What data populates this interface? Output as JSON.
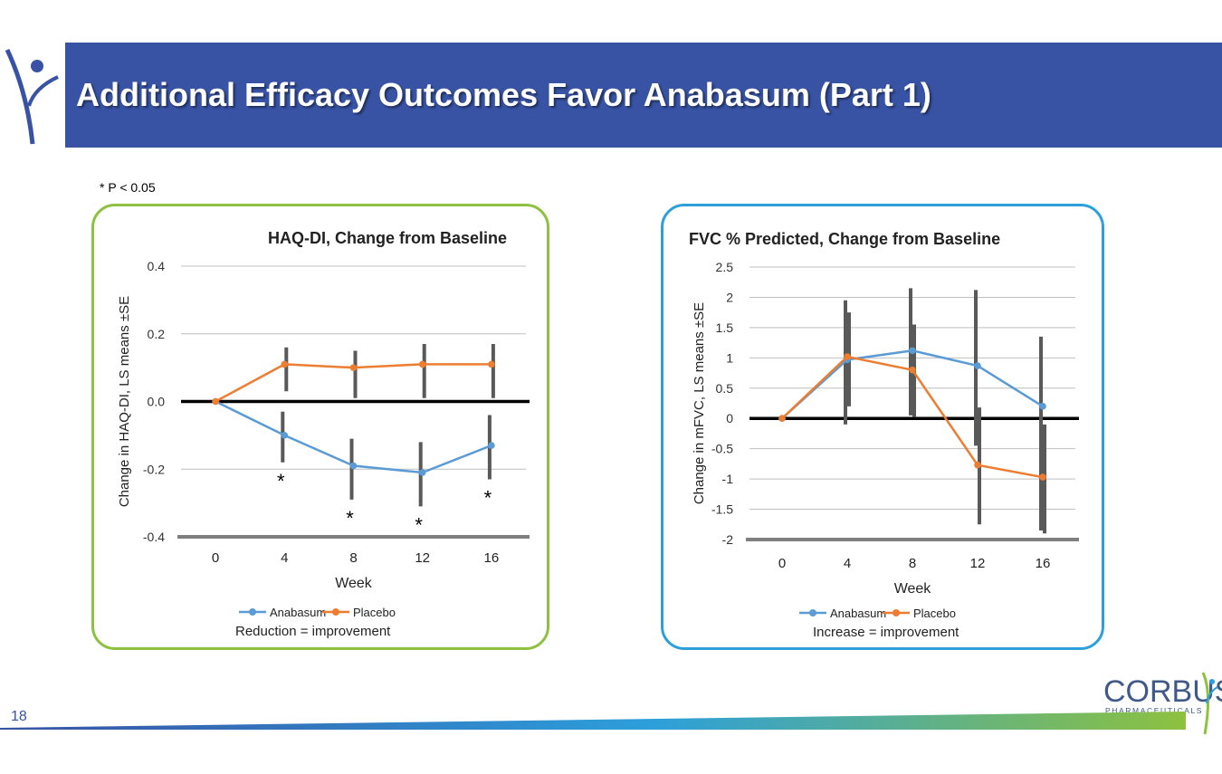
{
  "slide": {
    "title": "Additional Efficacy Outcomes Favor Anabasum (Part 1)",
    "note": "* P < 0.05",
    "page_number": "18",
    "logo": {
      "name": "CORBUS",
      "sub": "PHARMACEUTICALS"
    }
  },
  "colors": {
    "banner": "#3853a4",
    "anabasum": "#5b9bd5",
    "placebo": "#ed7d31",
    "left_border": "#8dc13f",
    "right_border": "#2d9fdb"
  },
  "chart_data": [
    {
      "type": "line",
      "title": "HAQ-DI, Change from Baseline",
      "xlabel": "Week",
      "ylabel": "Change in HAQ-DI, LS means ±SE",
      "x": [
        0,
        4,
        8,
        12,
        16
      ],
      "ylim": [
        -0.4,
        0.4
      ],
      "yticks": [
        -0.4,
        -0.2,
        0.0,
        0.2,
        0.4
      ],
      "ytick_labels": [
        "-0.4",
        "-0.2",
        "0.0",
        "0.2",
        "0.4"
      ],
      "series": [
        {
          "name": "Anabasum",
          "values": [
            0,
            -0.1,
            -0.19,
            -0.21,
            -0.13
          ],
          "err_low": [
            null,
            -0.18,
            -0.29,
            -0.31,
            -0.23
          ],
          "err_high": [
            null,
            -0.03,
            -0.11,
            -0.12,
            -0.04
          ]
        },
        {
          "name": "Placebo",
          "values": [
            0,
            0.11,
            0.1,
            0.11,
            0.11
          ],
          "err_low": [
            null,
            0.03,
            0.01,
            0.01,
            0.01
          ],
          "err_high": [
            null,
            0.16,
            0.15,
            0.17,
            0.17
          ]
        }
      ],
      "significance": [
        {
          "x": 4,
          "label": "*"
        },
        {
          "x": 8,
          "label": "*"
        },
        {
          "x": 12,
          "label": "*"
        },
        {
          "x": 16,
          "label": "*"
        }
      ],
      "caption": "Reduction = improvement",
      "legend": "bottom"
    },
    {
      "type": "line",
      "title": "FVC % Predicted, Change from Baseline",
      "xlabel": "Week",
      "ylabel": "Change in mFVC, LS means ±SE",
      "x": [
        0,
        4,
        8,
        12,
        16
      ],
      "ylim": [
        -2,
        2.5
      ],
      "yticks": [
        -2,
        -1.5,
        -1,
        -0.5,
        0,
        0.5,
        1,
        1.5,
        2,
        2.5
      ],
      "ytick_labels": [
        "-2",
        "-1.5",
        "-1",
        "-0.5",
        "0",
        "0.5",
        "1",
        "1.5",
        "2",
        "2.5"
      ],
      "series": [
        {
          "name": "Anabasum",
          "values": [
            0,
            0.97,
            1.12,
            0.87,
            0.2
          ],
          "err_low": [
            null,
            -0.1,
            0.05,
            -0.45,
            -1.85
          ],
          "err_high": [
            null,
            1.95,
            2.15,
            2.12,
            1.35
          ]
        },
        {
          "name": "Placebo",
          "values": [
            0,
            1.02,
            0.8,
            -0.77,
            -0.97
          ],
          "err_low": [
            null,
            0.2,
            0.02,
            -1.75,
            -1.9
          ],
          "err_high": [
            null,
            1.75,
            1.55,
            0.18,
            -0.1
          ]
        }
      ],
      "caption": "Increase = improvement",
      "legend": "bottom"
    }
  ]
}
